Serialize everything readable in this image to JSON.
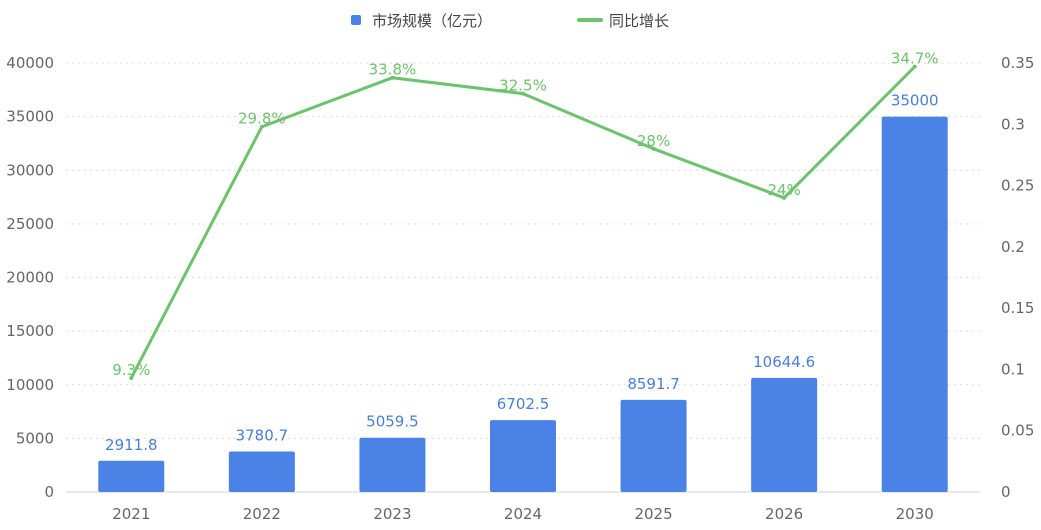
{
  "chart_data": {
    "type": "bar",
    "categories": [
      "2021",
      "2022",
      "2023",
      "2024",
      "2025",
      "2026",
      "2030"
    ],
    "series": [
      {
        "name": "市场规模（亿元）",
        "type": "bar",
        "axis": "left",
        "color": "#4a82e6",
        "values": [
          2911.8,
          3780.7,
          5059.5,
          6702.5,
          8591.7,
          10644.6,
          35000
        ],
        "labels": [
          "2911.8",
          "3780.7",
          "5059.5",
          "6702.5",
          "8591.7",
          "10644.6",
          "35000"
        ]
      },
      {
        "name": "同比增长",
        "type": "line",
        "axis": "right",
        "color": "#6cc36b",
        "values": [
          0.093,
          0.298,
          0.338,
          0.325,
          0.28,
          0.24,
          0.347
        ],
        "labels": [
          "9.3%",
          "29.8%",
          "33.8%",
          "32.5%",
          "28%",
          "24%",
          "34.7%"
        ]
      }
    ],
    "left_axis": {
      "ylim": [
        0,
        40000
      ],
      "ticks": [
        "0",
        "5000",
        "10000",
        "15000",
        "20000",
        "25000",
        "30000",
        "35000",
        "40000"
      ]
    },
    "right_axis": {
      "ylim": [
        0,
        0.35
      ],
      "ticks": [
        "0",
        "0.05",
        "0.1",
        "0.15",
        "0.2",
        "0.25",
        "0.3",
        "0.35"
      ]
    },
    "grid": true,
    "legend_position": "top-center",
    "title": "",
    "xlabel": "",
    "ylabel": ""
  }
}
